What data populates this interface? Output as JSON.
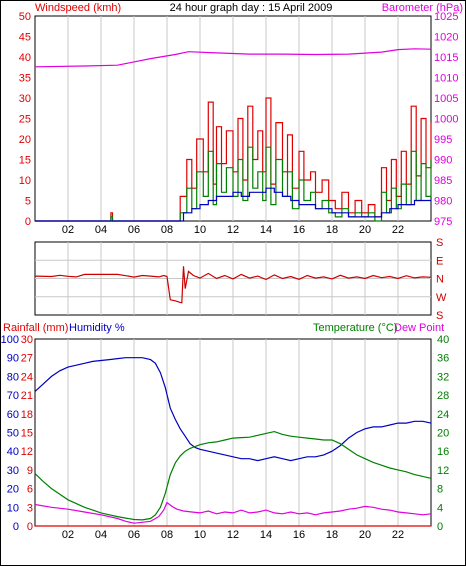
{
  "colors": {
    "red": "#e00000",
    "darkred": "#cc0000",
    "green": "#008000",
    "blue": "#0000c0",
    "magenta": "#e000e0",
    "text": "#000000",
    "grid": "#c8c8c8"
  },
  "chart_data": [
    {
      "id": "wind",
      "type": "line",
      "title": "24 hour graph day : 15 April 2009",
      "left_label": "Windspeed (kmh)",
      "right_label": "Barometer (hPa)",
      "x_ticks": [
        "02",
        "04",
        "06",
        "08",
        "10",
        "12",
        "14",
        "16",
        "18",
        "20",
        "22"
      ],
      "xlim": [
        0,
        24
      ],
      "left_ylim": [
        0,
        50
      ],
      "left_ticks": [
        "0",
        "5",
        "10",
        "15",
        "20",
        "25",
        "30",
        "35",
        "40",
        "45",
        "50"
      ],
      "right_ylim": [
        975,
        1025
      ],
      "right_ticks": [
        "975",
        "980",
        "985",
        "990",
        "995",
        "1000",
        "1005",
        "1010",
        "1015",
        "1020",
        "1025"
      ],
      "series": [
        {
          "kind": "barometer",
          "color": "magenta",
          "x": [
            0,
            3,
            5,
            7,
            8.5,
            9.3,
            11,
            13,
            15,
            17,
            19,
            21,
            22,
            23,
            24
          ],
          "y": [
            1012.6,
            1012.8,
            1013.0,
            1014.6,
            1015.6,
            1016.3,
            1016.0,
            1015.7,
            1015.7,
            1015.6,
            1015.7,
            1016.2,
            1016.8,
            1017.0,
            1016.9
          ]
        },
        {
          "kind": "gust",
          "color": "red",
          "x": [
            0,
            4.5,
            4.6,
            4.7,
            8.5,
            8.8,
            9.2,
            9.5,
            9.8,
            10.2,
            10.5,
            10.8,
            11.0,
            11.3,
            11.6,
            12.0,
            12.3,
            12.6,
            12.9,
            13.2,
            13.5,
            13.8,
            14.0,
            14.3,
            14.6,
            15.0,
            15.3,
            15.6,
            16.0,
            16.3,
            16.7,
            17.0,
            17.4,
            17.8,
            18.2,
            18.6,
            19.0,
            19.4,
            19.8,
            20.2,
            20.6,
            21.0,
            21.3,
            21.6,
            21.9,
            22.2,
            22.5,
            22.8,
            23.1,
            23.4,
            23.7,
            24
          ],
          "y": [
            0,
            0,
            2,
            0,
            0,
            6,
            15,
            8,
            20,
            12,
            29,
            9,
            23,
            14,
            22,
            12,
            25,
            10,
            28,
            15,
            22,
            12,
            30,
            9,
            24,
            12,
            21,
            8,
            17,
            10,
            12,
            7,
            10,
            5,
            3,
            7,
            2,
            5,
            2,
            4,
            1,
            13,
            5,
            15,
            6,
            17,
            9,
            28,
            11,
            25,
            13,
            24
          ]
        },
        {
          "kind": "average",
          "color": "green",
          "x": [
            0,
            4.5,
            4.6,
            4.7,
            8.5,
            8.8,
            9.2,
            9.5,
            9.8,
            10.2,
            10.5,
            10.8,
            11.0,
            11.3,
            11.6,
            12.0,
            12.3,
            12.6,
            12.9,
            13.2,
            13.5,
            13.8,
            14.0,
            14.3,
            14.6,
            15.0,
            15.3,
            15.6,
            16.0,
            16.3,
            16.7,
            17.0,
            17.4,
            17.8,
            18.2,
            18.6,
            19.0,
            19.4,
            19.8,
            20.2,
            20.6,
            21.0,
            21.3,
            21.6,
            21.9,
            22.2,
            22.5,
            22.8,
            23.1,
            23.4,
            23.7,
            24
          ],
          "y": [
            0,
            0,
            1,
            0,
            0,
            2,
            8,
            3,
            12,
            6,
            17,
            4,
            14,
            7,
            13,
            6,
            15,
            5,
            18,
            8,
            12,
            5,
            18,
            4,
            15,
            6,
            12,
            3,
            10,
            5,
            7,
            3,
            5,
            2,
            1,
            3,
            1,
            2,
            1,
            2,
            0,
            7,
            2,
            8,
            3,
            9,
            4,
            17,
            5,
            14,
            6,
            15
          ]
        },
        {
          "kind": "trend",
          "color": "blue",
          "x": [
            0,
            8.5,
            9.0,
            9.5,
            10.0,
            10.5,
            11.0,
            11.5,
            12.0,
            12.5,
            13.0,
            13.5,
            14.0,
            14.5,
            15.0,
            15.5,
            16.0,
            16.5,
            17.0,
            17.5,
            18.0,
            18.5,
            19.0,
            19.5,
            20.0,
            20.5,
            21.0,
            21.5,
            22.0,
            22.5,
            23.0,
            23.5,
            24
          ],
          "y": [
            0,
            0,
            2,
            3,
            4,
            5,
            6,
            6,
            7,
            6,
            7,
            7,
            8,
            7,
            6,
            5,
            4,
            4,
            3,
            3,
            2,
            2,
            1,
            1,
            1,
            1,
            2,
            3,
            4,
            4,
            5,
            5,
            5
          ]
        }
      ]
    },
    {
      "id": "direction",
      "type": "line",
      "right_ticks": [
        "S",
        "E",
        "N",
        "W",
        "S"
      ],
      "ylim": [
        0,
        360
      ],
      "xlim": [
        0,
        24
      ],
      "series": [
        {
          "kind": "direction",
          "color": "darkred",
          "x": [
            0,
            1.0,
            1.5,
            2.0,
            2.5,
            3.0,
            5.0,
            5.5,
            6.0,
            6.5,
            7.0,
            7.5,
            7.8,
            8.0,
            8.2,
            8.5,
            8.8,
            8.9,
            9.0,
            9.1,
            9.3,
            9.6,
            10.0,
            10.5,
            11.0,
            11.5,
            12.0,
            12.5,
            13.0,
            13.5,
            14.0,
            14.5,
            15.0,
            15.5,
            16.0,
            16.5,
            17.0,
            17.5,
            18.0,
            18.5,
            19.0,
            19.5,
            20.0,
            20.5,
            21.0,
            21.5,
            22.0,
            22.5,
            23.0,
            23.5,
            24
          ],
          "y": [
            192,
            190,
            196,
            191,
            188,
            200,
            200,
            194,
            187,
            195,
            192,
            188,
            195,
            190,
            75,
            70,
            62,
            60,
            240,
            130,
            215,
            195,
            182,
            205,
            180,
            195,
            178,
            200,
            182,
            192,
            175,
            198,
            180,
            190,
            176,
            195,
            182,
            188,
            178,
            196,
            182,
            188,
            180,
            195,
            184,
            190,
            180,
            194,
            183,
            188,
            186
          ]
        }
      ]
    },
    {
      "id": "temp",
      "type": "line",
      "rain_label": "Rainfall (mm)",
      "humidity_label": "Humidity %",
      "temperature_label": "Temperature (°C)",
      "dewpoint_label": "Dew Point",
      "xlim": [
        0,
        24
      ],
      "rain_ylim": [
        0,
        30
      ],
      "rain_ticks": [
        "0",
        "3",
        "6",
        "9",
        "12",
        "15",
        "18",
        "21",
        "24",
        "27",
        "30"
      ],
      "humidity_ylim": [
        0,
        100
      ],
      "humidity_ticks": [
        "0",
        "10",
        "20",
        "30",
        "40",
        "50",
        "60",
        "70",
        "80",
        "90",
        "100"
      ],
      "temp_ylim": [
        0,
        40
      ],
      "temp_ticks": [
        "0",
        "4",
        "8",
        "12",
        "16",
        "20",
        "24",
        "28",
        "32",
        "36",
        "40"
      ],
      "series": [
        {
          "kind": "humidity",
          "color": "blue",
          "x": [
            0,
            0.5,
            1.0,
            1.5,
            2.0,
            2.5,
            3.0,
            3.5,
            4.0,
            4.5,
            5.0,
            5.5,
            6.0,
            6.5,
            7.0,
            7.3,
            7.6,
            7.9,
            8.2,
            8.5,
            8.8,
            9.1,
            9.4,
            9.7,
            10.0,
            10.5,
            11.0,
            11.5,
            12.0,
            12.5,
            13.0,
            13.5,
            14.0,
            14.5,
            15.0,
            15.5,
            16.0,
            16.5,
            17.0,
            17.5,
            18.0,
            18.5,
            19.0,
            19.5,
            20.0,
            20.5,
            21.0,
            21.5,
            22.0,
            22.5,
            23.0,
            23.5,
            24
          ],
          "y": [
            72,
            76,
            80,
            83,
            85,
            86,
            87,
            88,
            88.5,
            89,
            89.5,
            90,
            90,
            90,
            89,
            87,
            82,
            74,
            63,
            57,
            52,
            48,
            44,
            42,
            41,
            40,
            39,
            38,
            37,
            36,
            36,
            35,
            36,
            37,
            36,
            35,
            36,
            37,
            37,
            38,
            40,
            43,
            47,
            50,
            52,
            53,
            53,
            54,
            55,
            55,
            56,
            56,
            55
          ]
        },
        {
          "kind": "temperature",
          "color": "green",
          "x": [
            0,
            0.5,
            1.0,
            1.5,
            2.0,
            2.5,
            3.0,
            3.5,
            4.0,
            4.5,
            5.0,
            5.5,
            6.0,
            6.5,
            7.0,
            7.3,
            7.6,
            7.9,
            8.2,
            8.5,
            8.8,
            9.1,
            9.4,
            9.7,
            10.0,
            10.5,
            11.0,
            11.5,
            12.0,
            12.5,
            13.0,
            13.5,
            14.0,
            14.5,
            15.0,
            15.5,
            16.0,
            16.5,
            17.0,
            17.5,
            18.0,
            18.5,
            19.0,
            19.5,
            20.0,
            20.5,
            21.0,
            21.5,
            22.0,
            22.5,
            23.0,
            23.5,
            24
          ],
          "y": [
            11.2,
            9.5,
            8.0,
            6.8,
            5.6,
            4.8,
            4.0,
            3.4,
            2.8,
            2.4,
            2.0,
            1.7,
            1.4,
            1.3,
            1.6,
            2.4,
            4.0,
            7.0,
            11.0,
            13.5,
            15.0,
            16.0,
            16.6,
            17.0,
            17.4,
            17.8,
            18.0,
            18.4,
            18.8,
            18.9,
            19.0,
            19.4,
            19.8,
            20.2,
            19.6,
            19.2,
            19.0,
            18.8,
            18.6,
            18.4,
            18.4,
            17.6,
            16.4,
            15.2,
            14.4,
            13.6,
            13.0,
            12.4,
            12.0,
            11.6,
            11.0,
            10.6,
            10.2
          ]
        },
        {
          "kind": "dewpoint",
          "color": "magenta",
          "x": [
            0,
            1.0,
            2.0,
            3.0,
            4.0,
            5.0,
            5.5,
            6.0,
            6.5,
            7.0,
            7.5,
            7.8,
            8.0,
            8.3,
            8.6,
            9.0,
            9.5,
            10.0,
            10.5,
            11.0,
            11.5,
            12.0,
            12.5,
            13.0,
            13.5,
            14.0,
            14.5,
            15.0,
            15.5,
            16.0,
            16.5,
            17.0,
            17.5,
            18.0,
            18.5,
            19.0,
            19.5,
            20.0,
            20.5,
            21.0,
            21.5,
            22.0,
            22.5,
            23.0,
            23.5,
            24
          ],
          "y": [
            4.6,
            4.0,
            3.6,
            3.0,
            2.4,
            1.6,
            1.0,
            0.6,
            0.8,
            1.0,
            2.0,
            3.4,
            5.0,
            4.2,
            3.6,
            3.2,
            3.0,
            2.8,
            3.2,
            2.6,
            3.0,
            2.8,
            3.4,
            2.8,
            3.0,
            3.4,
            2.8,
            2.6,
            3.0,
            2.6,
            2.8,
            2.4,
            2.8,
            3.0,
            3.2,
            3.6,
            3.8,
            4.2,
            4.0,
            3.6,
            3.4,
            3.0,
            2.8,
            2.6,
            2.4,
            2.6
          ]
        },
        {
          "kind": "rainfall",
          "color": "red",
          "x": [
            0,
            24
          ],
          "y": [
            0,
            0
          ]
        }
      ]
    }
  ]
}
